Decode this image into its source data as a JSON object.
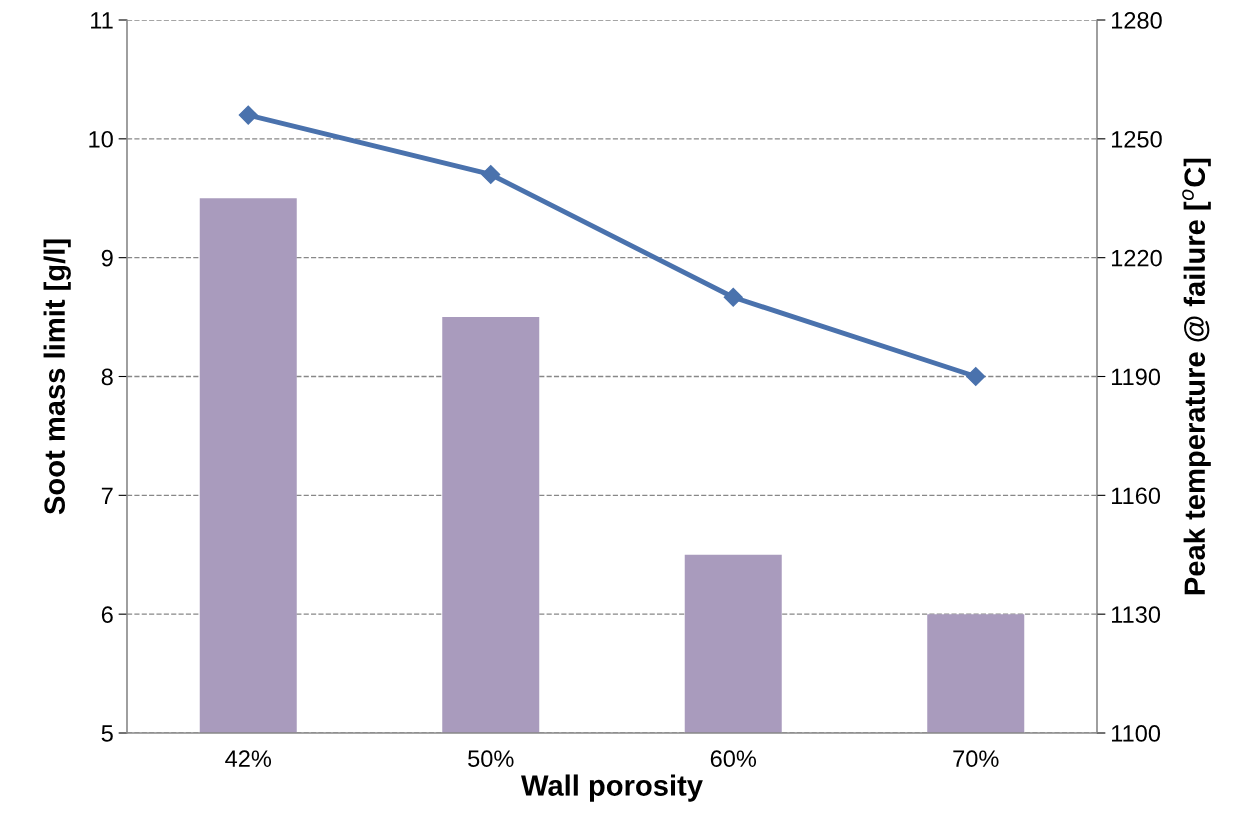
{
  "chart_data": {
    "type": "bar",
    "xlabel": "Wall porosity",
    "ylabel": "Soot mass limit [g/l]",
    "y2label": "Peak temperature @ failure [$^{o}$C]",
    "categories": [
      "42%",
      "50%",
      "60%",
      "70%"
    ],
    "series": [
      {
        "color": "#a99bbd",
        "values": [
          9.5,
          8.5,
          6.5,
          6.0
        ]
      },
      {
        "type": "line",
        "axis": "y2",
        "color": "#4a72ad",
        "marker": "diamond",
        "line_style": "solid",
        "values": [
          1256,
          1241,
          1210,
          1190
        ]
      }
    ],
    "ylim": [
      5,
      11
    ],
    "yticks": [
      5,
      6,
      7,
      8,
      9,
      10,
      11
    ],
    "y2lim": [
      1100,
      1280
    ],
    "y2ticks": [
      1100,
      1130,
      1160,
      1190,
      1220,
      1250,
      1280
    ],
    "grid": "y"
  }
}
